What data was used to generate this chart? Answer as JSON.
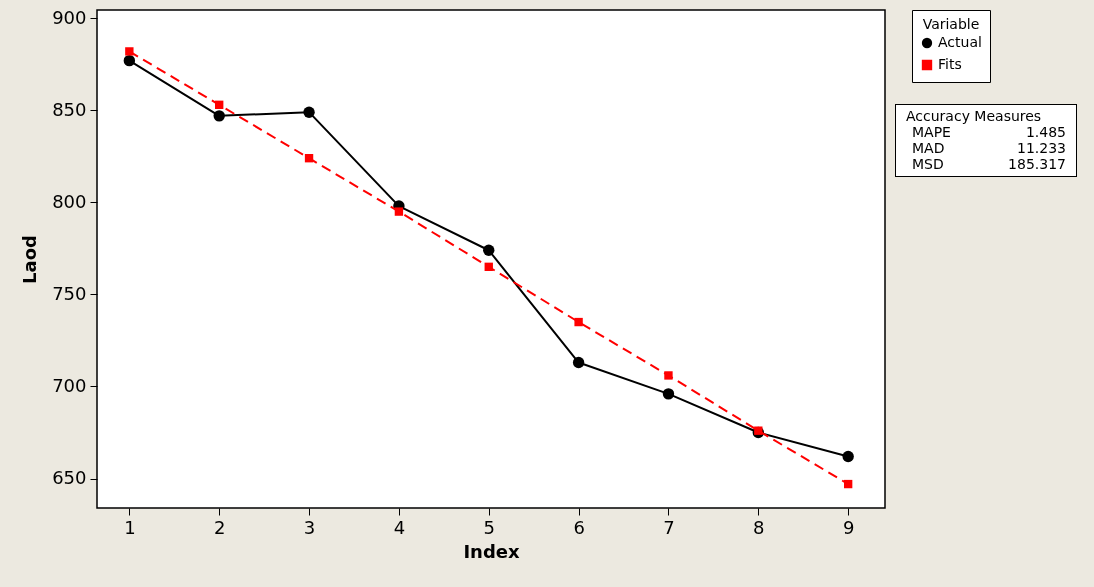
{
  "chart_data": {
    "type": "line",
    "xlabel": "Index",
    "ylabel": "Laod",
    "legend_title": "Variable",
    "legend": "top right",
    "x": [
      1,
      2,
      3,
      4,
      5,
      6,
      7,
      8,
      9
    ],
    "xlim": [
      0.64,
      9.41
    ],
    "xticks": [
      1,
      2,
      3,
      4,
      5,
      6,
      7,
      8,
      9
    ],
    "ylim": [
      634,
      904.5
    ],
    "yticks": [
      650,
      700,
      750,
      800,
      850,
      900
    ],
    "grid": false,
    "series": [
      {
        "name": "Actual",
        "color": "#000000",
        "marker": "circle",
        "line_style": "solid",
        "values": [
          877,
          847,
          849,
          798,
          774,
          713,
          696,
          675,
          662
        ]
      },
      {
        "name": "Fits",
        "color": "#ff0000",
        "marker": "square",
        "line_style": "dashed",
        "values": [
          882,
          853,
          824,
          795,
          765,
          735,
          706,
          676,
          647
        ]
      }
    ],
    "annotations": [
      "Accuracy Measures",
      "MAPE 1.485",
      "MAD 11.233",
      "MSD 185.317"
    ]
  }
}
